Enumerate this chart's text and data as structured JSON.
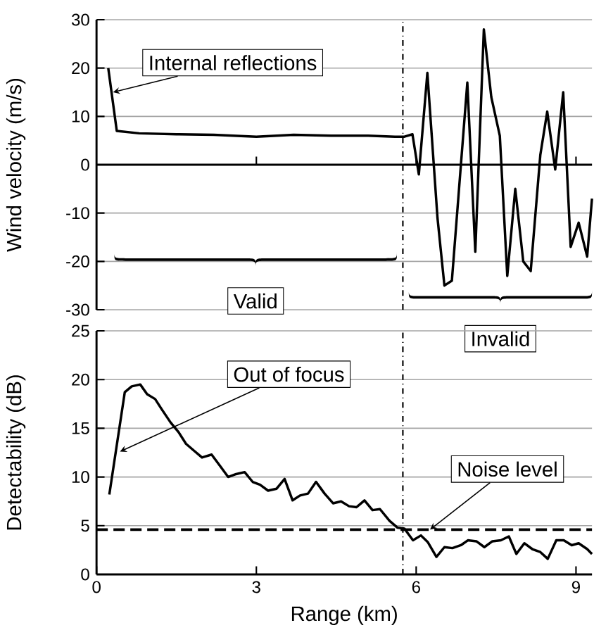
{
  "chart_data": [
    {
      "type": "line",
      "ylabel": "Wind velocity (m/s)",
      "x": [
        0.22,
        0.38,
        0.8,
        1.5,
        2.2,
        3.0,
        3.7,
        4.4,
        5.1,
        5.6,
        5.78,
        5.93,
        6.05,
        6.21,
        6.4,
        6.53,
        6.67,
        6.96,
        7.11,
        7.27,
        7.41,
        7.57,
        7.71,
        7.86,
        8.01,
        8.15,
        8.33,
        8.46,
        8.61,
        8.76,
        8.9,
        9.05,
        9.21,
        9.3
      ],
      "series": [
        {
          "color": "#000000",
          "values": [
            20,
            7,
            6.5,
            6.3,
            6.2,
            5.8,
            6.2,
            6,
            6,
            5.8,
            5.8,
            6.3,
            -2,
            19,
            -11,
            -25,
            -24,
            17,
            -18,
            28,
            14,
            6,
            -23,
            -5,
            -20,
            -22,
            2,
            11,
            -1,
            15,
            -17,
            -12,
            -19,
            -7
          ]
        }
      ],
      "xlim": [
        0,
        9.3
      ],
      "xticks": [
        0,
        3,
        6,
        9
      ],
      "ylim": [
        -30,
        30
      ],
      "yticks": [
        -30,
        -20,
        -10,
        0,
        10,
        20,
        30
      ],
      "tick_labels": "y",
      "grid": "y",
      "marker": "none",
      "annotations": [
        {
          "text": "Internal reflections",
          "x": 0.31,
          "y": 15
        },
        "Valid",
        "Invalid"
      ],
      "ref_lines": [
        {
          "axis": "x",
          "value": 5.75,
          "line_style": "dashdot"
        }
      ]
    },
    {
      "type": "line",
      "xlabel": "Range  (km)",
      "ylabel": "Detectability (dB)",
      "x": [
        0.24,
        0.53,
        0.66,
        0.82,
        0.95,
        1.1,
        1.23,
        1.39,
        1.54,
        1.68,
        1.83,
        1.98,
        2.16,
        2.31,
        2.47,
        2.62,
        2.78,
        2.93,
        3.07,
        3.22,
        3.38,
        3.53,
        3.68,
        3.82,
        3.97,
        4.12,
        4.28,
        4.44,
        4.59,
        4.74,
        4.88,
        5.03,
        5.18,
        5.32,
        5.5,
        5.65,
        5.78,
        5.94,
        6.09,
        6.22,
        6.38,
        6.53,
        6.68,
        6.84,
        6.97,
        7.13,
        7.28,
        7.43,
        7.59,
        7.74,
        7.88,
        8.03,
        8.18,
        8.33,
        8.47,
        8.63,
        8.77,
        8.92,
        9.05,
        9.21,
        9.3
      ],
      "series": [
        {
          "color": "#000000",
          "values": [
            8.2,
            18.7,
            19.3,
            19.5,
            18.5,
            18.0,
            16.9,
            15.6,
            14.6,
            13.4,
            12.7,
            12.0,
            12.3,
            11.2,
            10.0,
            10.3,
            10.5,
            9.5,
            9.2,
            8.6,
            8.8,
            9.8,
            7.6,
            8.1,
            8.3,
            9.5,
            8.3,
            7.3,
            7.5,
            7.0,
            6.9,
            7.6,
            6.6,
            6.7,
            5.5,
            4.8,
            4.7,
            3.5,
            4.0,
            3.3,
            1.8,
            2.8,
            2.7,
            3.0,
            3.5,
            3.4,
            2.8,
            3.4,
            3.5,
            3.9,
            2.1,
            3.2,
            2.6,
            2.3,
            1.6,
            3.5,
            3.5,
            3.0,
            3.2,
            2.6,
            2.1
          ]
        }
      ],
      "xlim": [
        0,
        9.3
      ],
      "xticks": [
        0,
        3,
        6,
        9
      ],
      "ylim": [
        0,
        25
      ],
      "yticks": [
        0,
        5,
        10,
        15,
        20,
        25
      ],
      "grid": "y",
      "marker": "none",
      "annotations": [
        {
          "text": "Out of focus",
          "x": 0.44,
          "y": 12.6
        },
        {
          "text": "Noise level",
          "x": 6.26,
          "y": 4.6
        }
      ],
      "ref_lines": [
        {
          "axis": "x",
          "value": 5.75,
          "line_style": "dashdot"
        },
        {
          "axis": "y",
          "value": 4.6,
          "line_style": "dashed"
        }
      ]
    }
  ]
}
